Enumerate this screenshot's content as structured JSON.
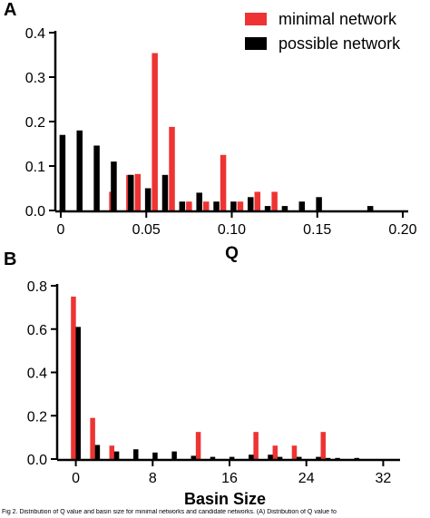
{
  "panels": [
    {
      "label": "A",
      "chart_data": {
        "type": "bar",
        "xlabel": "Q",
        "ylabel": "",
        "xlim": [
          0,
          0.2
        ],
        "ylim": [
          0,
          0.4
        ],
        "xticks": [
          0,
          0.05,
          0.1,
          0.15,
          0.2
        ],
        "xtick_labels": [
          "0",
          "0.05",
          "0.10",
          "0.15",
          "0.20"
        ],
        "yticks": [
          0,
          0.1,
          0.2,
          0.3,
          0.4
        ],
        "ytick_labels": [
          "0.0",
          "0.1",
          "0.2",
          "0.3",
          "0.4"
        ],
        "legend_position": "top-right",
        "series": [
          {
            "name": "minimal network",
            "color": "#ee3333",
            "points": [
              [
                0.03,
                0.042
              ],
              [
                0.04,
                0.08
              ],
              [
                0.045,
                0.082
              ],
              [
                0.055,
                0.354
              ],
              [
                0.065,
                0.188
              ],
              [
                0.075,
                0.02
              ],
              [
                0.085,
                0.02
              ],
              [
                0.095,
                0.125
              ],
              [
                0.105,
                0.02
              ],
              [
                0.115,
                0.042
              ],
              [
                0.125,
                0.042
              ]
            ]
          },
          {
            "name": "possible network",
            "color": "#000000",
            "points": [
              [
                0.001,
                0.17
              ],
              [
                0.011,
                0.18
              ],
              [
                0.021,
                0.146
              ],
              [
                0.031,
                0.11
              ],
              [
                0.041,
                0.08
              ],
              [
                0.051,
                0.05
              ],
              [
                0.061,
                0.08
              ],
              [
                0.071,
                0.02
              ],
              [
                0.081,
                0.04
              ],
              [
                0.091,
                0.02
              ],
              [
                0.101,
                0.02
              ],
              [
                0.111,
                0.03
              ],
              [
                0.121,
                0.01
              ],
              [
                0.131,
                0.01
              ],
              [
                0.141,
                0.02
              ],
              [
                0.151,
                0.03
              ],
              [
                0.181,
                0.01
              ]
            ]
          }
        ]
      }
    },
    {
      "label": "B",
      "chart_data": {
        "type": "bar",
        "xlabel": "Basin Size",
        "ylabel": "",
        "xlim": [
          -1,
          33
        ],
        "ylim": [
          0,
          0.8
        ],
        "xticks": [
          0,
          8,
          16,
          24,
          32
        ],
        "xtick_labels": [
          "0",
          "8",
          "16",
          "24",
          "32"
        ],
        "yticks": [
          0,
          0.2,
          0.4,
          0.6,
          0.8
        ],
        "ytick_labels": [
          "0.0",
          "0.2",
          "0.4",
          "0.6",
          "0.8"
        ],
        "series": [
          {
            "name": "minimal network",
            "color": "#ee3333",
            "points": [
              [
                -0.25,
                0.75
              ],
              [
                1.75,
                0.19
              ],
              [
                3.75,
                0.062
              ],
              [
                12.75,
                0.125
              ],
              [
                18.75,
                0.125
              ],
              [
                20.75,
                0.062
              ],
              [
                22.75,
                0.062
              ],
              [
                25.75,
                0.125
              ]
            ]
          },
          {
            "name": "possible network",
            "color": "#000000",
            "points": [
              [
                0.25,
                0.61
              ],
              [
                2.25,
                0.065
              ],
              [
                4.25,
                0.035
              ],
              [
                6.25,
                0.045
              ],
              [
                8.25,
                0.03
              ],
              [
                10.25,
                0.035
              ],
              [
                12.25,
                0.015
              ],
              [
                14.25,
                0.01
              ],
              [
                16.25,
                0.01
              ],
              [
                18.25,
                0.02
              ],
              [
                20.25,
                0.02
              ],
              [
                21.25,
                0.01
              ],
              [
                23.25,
                0.01
              ],
              [
                25.25,
                0.01
              ],
              [
                26.25,
                0.005
              ],
              [
                27.25,
                0.005
              ],
              [
                29.25,
                0.005
              ]
            ]
          }
        ]
      }
    }
  ],
  "caption": "Fig 2. Distribution of Q value and basin size for minimal networks and candidate networks. (A) Distribution of Q value fo"
}
